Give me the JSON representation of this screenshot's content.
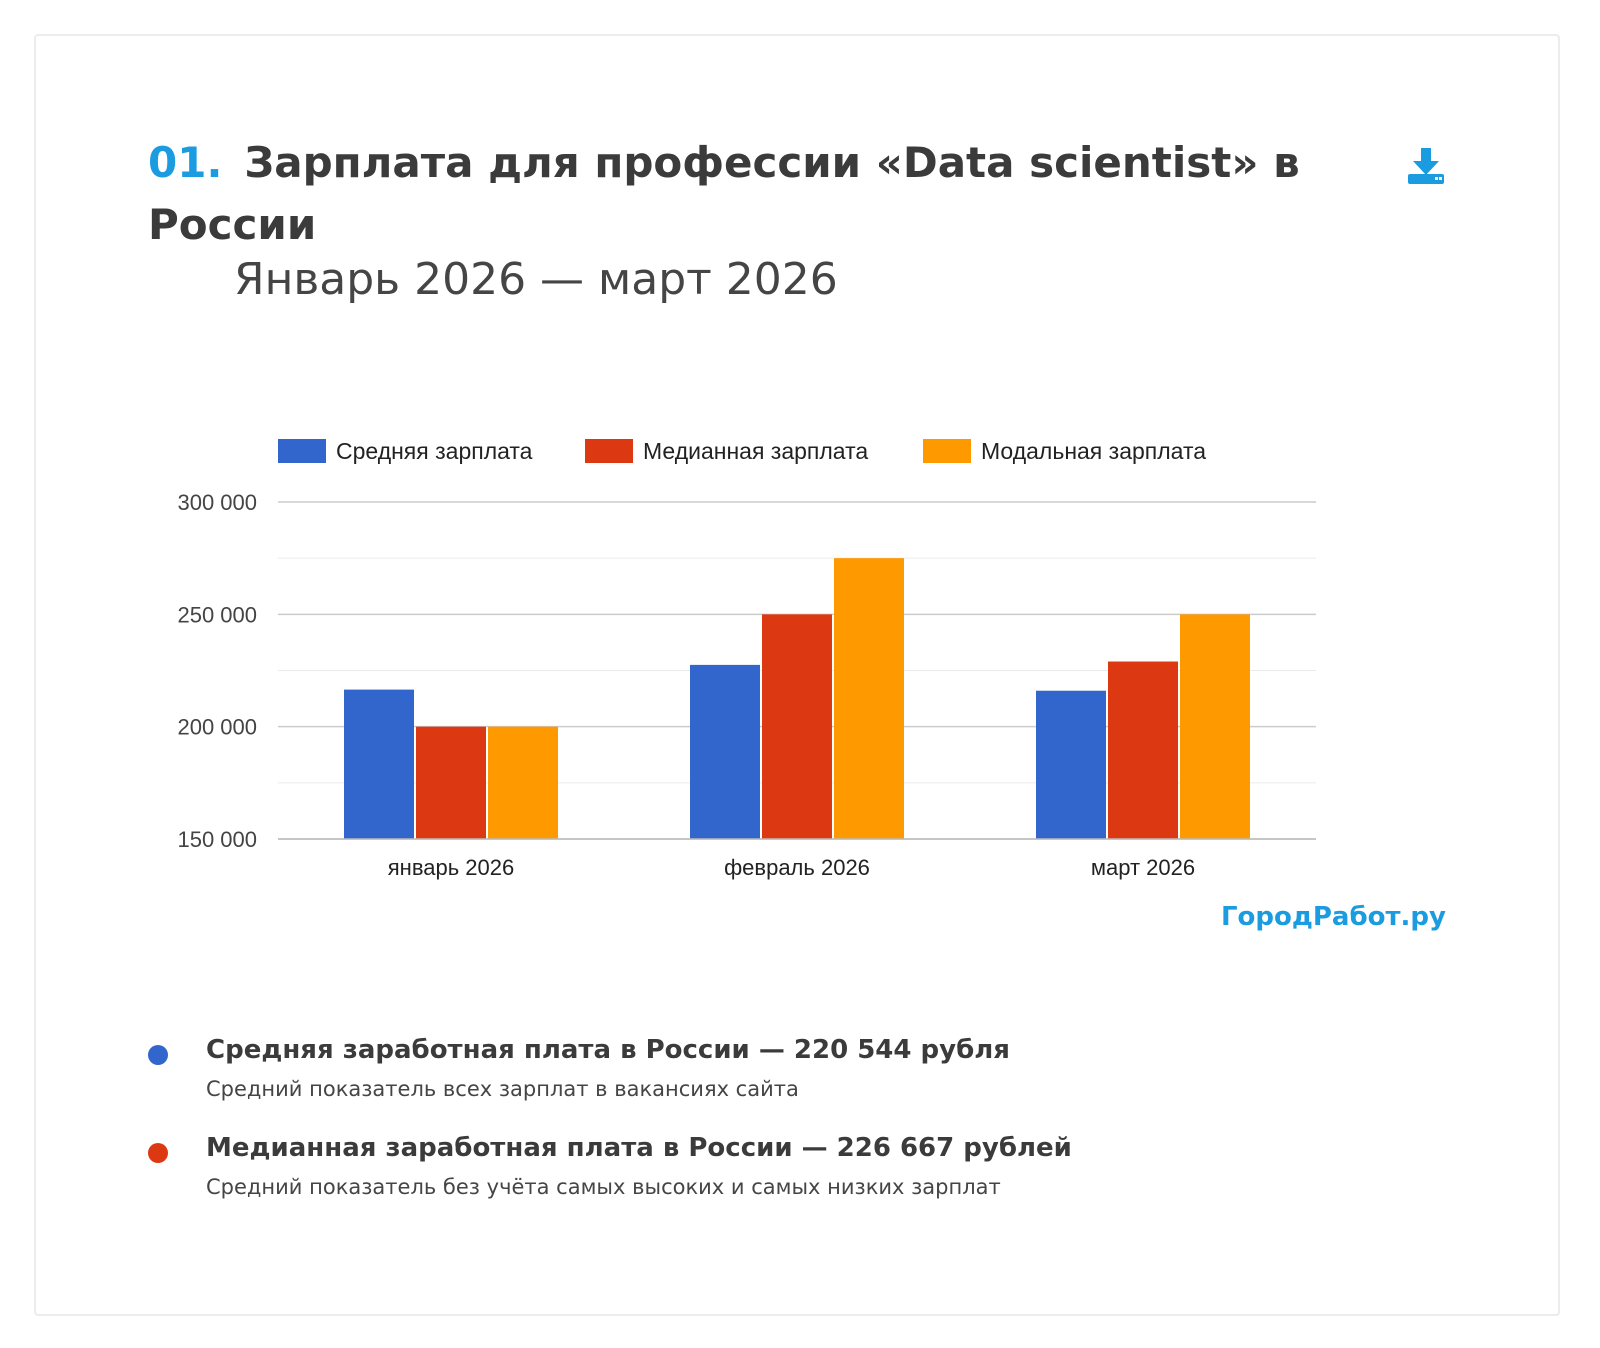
{
  "header": {
    "number": "01.",
    "title": "Зарплата для профессии «Data scientist» в России",
    "subtitle": "Январь 2026 — март 2026"
  },
  "brand": "ГородРабот.ру",
  "colors": {
    "accent": "#1b9be0",
    "mean": "#3366cc",
    "median": "#dc3912",
    "mode": "#ff9900"
  },
  "icons": {
    "download": "download-icon"
  },
  "chart_data": {
    "type": "bar",
    "title": "",
    "xlabel": "",
    "ylabel": "",
    "categories": [
      "январь 2026",
      "февраль 2026",
      "март 2026"
    ],
    "series": [
      {
        "name": "Средняя зарплата",
        "color": "#3366cc",
        "values": [
          216500,
          227500,
          216000
        ]
      },
      {
        "name": "Медианная зарплата",
        "color": "#dc3912",
        "values": [
          200000,
          250000,
          229000
        ]
      },
      {
        "name": "Модальная зарплата",
        "color": "#ff9900",
        "values": [
          200000,
          275000,
          250000
        ]
      }
    ],
    "ylim": [
      150000,
      300000
    ],
    "yticks": [
      150000,
      200000,
      250000,
      300000
    ],
    "ytick_labels": [
      "150 000",
      "200 000",
      "250 000",
      "300 000"
    ],
    "grid": true,
    "legend": "top"
  },
  "stats": [
    {
      "color": "#3366cc",
      "head": "Средняя заработная плата в России — 220 544 рубля",
      "desc": "Средний показатель всех зарплат в вакансиях сайта"
    },
    {
      "color": "#dc3912",
      "head": "Медианная заработная плата в России — 226 667 рублей",
      "desc": "Средний показатель без учёта самых высоких и самых низких зарплат"
    }
  ]
}
